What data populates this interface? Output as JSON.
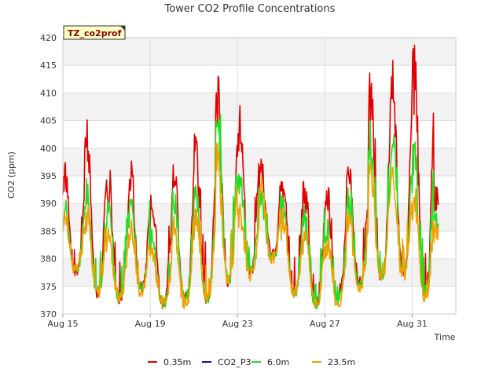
{
  "chart_data": {
    "type": "line",
    "title": "Tower CO2 Profile Concentrations",
    "tag": "TZ_co2prof",
    "xlabel": "Time",
    "ylabel": "CO2 (ppm)",
    "ylim": [
      370,
      420
    ],
    "yticks": [
      370,
      375,
      380,
      385,
      390,
      395,
      400,
      405,
      410,
      415,
      420
    ],
    "xlim_days": [
      0,
      18
    ],
    "xticks": [
      {
        "day": 0,
        "label": "Aug 15"
      },
      {
        "day": 4,
        "label": "Aug 19"
      },
      {
        "day": 8,
        "label": "Aug 23"
      },
      {
        "day": 12,
        "label": "Aug 27"
      },
      {
        "day": 16,
        "label": "Aug 31"
      }
    ],
    "data_end_day": 17.2,
    "grid": true,
    "legend_position": "bottom",
    "series": [
      {
        "name": "0.35m",
        "color": "#e00000",
        "daily": [
          {
            "day": 0,
            "min": 378,
            "max": 397
          },
          {
            "day": 1,
            "min": 374,
            "max": 406
          },
          {
            "day": 2,
            "min": 373,
            "max": 395
          },
          {
            "day": 3,
            "min": 375,
            "max": 397
          },
          {
            "day": 4,
            "min": 372,
            "max": 392
          },
          {
            "day": 5,
            "min": 373,
            "max": 399
          },
          {
            "day": 6,
            "min": 373,
            "max": 402
          },
          {
            "day": 7,
            "min": 376,
            "max": 413
          },
          {
            "day": 8,
            "min": 378,
            "max": 408
          },
          {
            "day": 9,
            "min": 381,
            "max": 398
          },
          {
            "day": 10,
            "min": 374,
            "max": 395
          },
          {
            "day": 11,
            "min": 372,
            "max": 393
          },
          {
            "day": 12,
            "min": 373,
            "max": 393
          },
          {
            "day": 13,
            "min": 376,
            "max": 398
          },
          {
            "day": 14,
            "min": 377,
            "max": 413
          },
          {
            "day": 15,
            "min": 378,
            "max": 419
          },
          {
            "day": 16,
            "min": 374,
            "max": 418
          },
          {
            "day": 17,
            "min": 376,
            "max": 393
          }
        ]
      },
      {
        "name": "CO2_P3",
        "color": "#1010aa",
        "daily": []
      },
      {
        "name": "6.0m",
        "color": "#22dd22",
        "daily": [
          {
            "day": 0,
            "min": 378,
            "max": 390
          },
          {
            "day": 1,
            "min": 374,
            "max": 394
          },
          {
            "day": 2,
            "min": 373,
            "max": 391
          },
          {
            "day": 3,
            "min": 375,
            "max": 391
          },
          {
            "day": 4,
            "min": 372,
            "max": 385
          },
          {
            "day": 5,
            "min": 373,
            "max": 392
          },
          {
            "day": 6,
            "min": 373,
            "max": 395
          },
          {
            "day": 7,
            "min": 376,
            "max": 407
          },
          {
            "day": 8,
            "min": 378,
            "max": 396
          },
          {
            "day": 9,
            "min": 380,
            "max": 392
          },
          {
            "day": 10,
            "min": 374,
            "max": 391
          },
          {
            "day": 11,
            "min": 372,
            "max": 389
          },
          {
            "day": 12,
            "min": 373,
            "max": 387
          },
          {
            "day": 13,
            "min": 376,
            "max": 392
          },
          {
            "day": 14,
            "min": 377,
            "max": 405
          },
          {
            "day": 15,
            "min": 378,
            "max": 404
          },
          {
            "day": 16,
            "min": 374,
            "max": 401
          },
          {
            "day": 17,
            "min": 376,
            "max": 389
          }
        ]
      },
      {
        "name": "23.5m",
        "color": "#f0a000",
        "daily": [
          {
            "day": 0,
            "min": 378,
            "max": 388
          },
          {
            "day": 1,
            "min": 374,
            "max": 389
          },
          {
            "day": 2,
            "min": 373,
            "max": 385
          },
          {
            "day": 3,
            "min": 374,
            "max": 387
          },
          {
            "day": 4,
            "min": 372,
            "max": 382
          },
          {
            "day": 5,
            "min": 372,
            "max": 387
          },
          {
            "day": 6,
            "min": 373,
            "max": 390
          },
          {
            "day": 7,
            "min": 376,
            "max": 400
          },
          {
            "day": 8,
            "min": 377,
            "max": 390
          },
          {
            "day": 9,
            "min": 380,
            "max": 395
          },
          {
            "day": 10,
            "min": 374,
            "max": 388
          },
          {
            "day": 11,
            "min": 372,
            "max": 386
          },
          {
            "day": 12,
            "min": 372,
            "max": 384
          },
          {
            "day": 13,
            "min": 375,
            "max": 389
          },
          {
            "day": 14,
            "min": 377,
            "max": 398
          },
          {
            "day": 15,
            "min": 377,
            "max": 397
          },
          {
            "day": 16,
            "min": 373,
            "max": 393
          },
          {
            "day": 17,
            "min": 375,
            "max": 386
          }
        ]
      }
    ]
  }
}
